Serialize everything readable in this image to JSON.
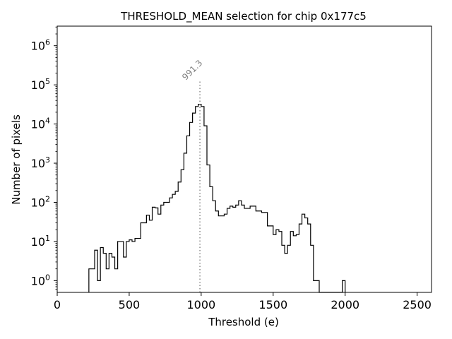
{
  "chart_data": {
    "type": "histogram",
    "title": "THRESHOLD_MEAN selection for chip 0x177c5",
    "xlabel": "Threshold (e)",
    "ylabel": "Number of pixels",
    "xlim": [
      0,
      2600
    ],
    "ylim_log10": [
      -0.3,
      6.5
    ],
    "yscale": "log",
    "x_ticks": [
      0,
      500,
      1000,
      1500,
      2000,
      2500
    ],
    "x_tick_labels": [
      "0",
      "500",
      "1000",
      "1500",
      "2000",
      "2500"
    ],
    "y_ticks_log10": [
      0,
      1,
      2,
      3,
      4,
      5,
      6
    ],
    "y_tick_labels": [
      "10^0",
      "10^1",
      "10^2",
      "10^3",
      "10^4",
      "10^5",
      "10^6"
    ],
    "bin_width": 20,
    "bins": [
      [
        230,
        2
      ],
      [
        250,
        2
      ],
      [
        270,
        6
      ],
      [
        290,
        1
      ],
      [
        310,
        7
      ],
      [
        330,
        5
      ],
      [
        350,
        2
      ],
      [
        370,
        5
      ],
      [
        390,
        4
      ],
      [
        410,
        2
      ],
      [
        430,
        10
      ],
      [
        450,
        10
      ],
      [
        470,
        4
      ],
      [
        490,
        10
      ],
      [
        510,
        11
      ],
      [
        530,
        10
      ],
      [
        550,
        12
      ],
      [
        570,
        12
      ],
      [
        590,
        30
      ],
      [
        610,
        30
      ],
      [
        630,
        47
      ],
      [
        650,
        35
      ],
      [
        670,
        75
      ],
      [
        690,
        72
      ],
      [
        710,
        50
      ],
      [
        730,
        85
      ],
      [
        750,
        100
      ],
      [
        770,
        100
      ],
      [
        790,
        130
      ],
      [
        810,
        160
      ],
      [
        830,
        190
      ],
      [
        850,
        330
      ],
      [
        870,
        680
      ],
      [
        890,
        1800
      ],
      [
        910,
        5000
      ],
      [
        930,
        11000
      ],
      [
        950,
        19000
      ],
      [
        970,
        28000
      ],
      [
        990,
        32000
      ],
      [
        1010,
        28000
      ],
      [
        1030,
        9000
      ],
      [
        1050,
        900
      ],
      [
        1070,
        250
      ],
      [
        1090,
        110
      ],
      [
        1110,
        60
      ],
      [
        1130,
        45
      ],
      [
        1150,
        45
      ],
      [
        1170,
        50
      ],
      [
        1190,
        70
      ],
      [
        1210,
        80
      ],
      [
        1230,
        75
      ],
      [
        1250,
        85
      ],
      [
        1270,
        110
      ],
      [
        1290,
        85
      ],
      [
        1310,
        70
      ],
      [
        1330,
        70
      ],
      [
        1350,
        80
      ],
      [
        1370,
        80
      ],
      [
        1390,
        60
      ],
      [
        1410,
        60
      ],
      [
        1430,
        55
      ],
      [
        1450,
        55
      ],
      [
        1470,
        25
      ],
      [
        1490,
        25
      ],
      [
        1510,
        15
      ],
      [
        1530,
        20
      ],
      [
        1550,
        18
      ],
      [
        1570,
        8
      ],
      [
        1590,
        5
      ],
      [
        1610,
        8
      ],
      [
        1630,
        18
      ],
      [
        1650,
        14
      ],
      [
        1670,
        15
      ],
      [
        1690,
        28
      ],
      [
        1710,
        50
      ],
      [
        1730,
        40
      ],
      [
        1750,
        28
      ],
      [
        1770,
        8
      ],
      [
        1790,
        1
      ],
      [
        1810,
        1
      ],
      [
        1830,
        0.5
      ],
      [
        1850,
        0.5
      ],
      [
        1870,
        0.5
      ],
      [
        1890,
        0.5
      ],
      [
        1910,
        0.5
      ],
      [
        1930,
        0.5
      ],
      [
        1950,
        0.5
      ],
      [
        1970,
        0.5
      ],
      [
        1990,
        1
      ]
    ],
    "annotation": {
      "text": "991.3",
      "x_value": 991.3,
      "line_style": "dotted",
      "color": "#808080"
    },
    "colors": {
      "histogram": "#000000",
      "annotation": "#808080"
    }
  }
}
